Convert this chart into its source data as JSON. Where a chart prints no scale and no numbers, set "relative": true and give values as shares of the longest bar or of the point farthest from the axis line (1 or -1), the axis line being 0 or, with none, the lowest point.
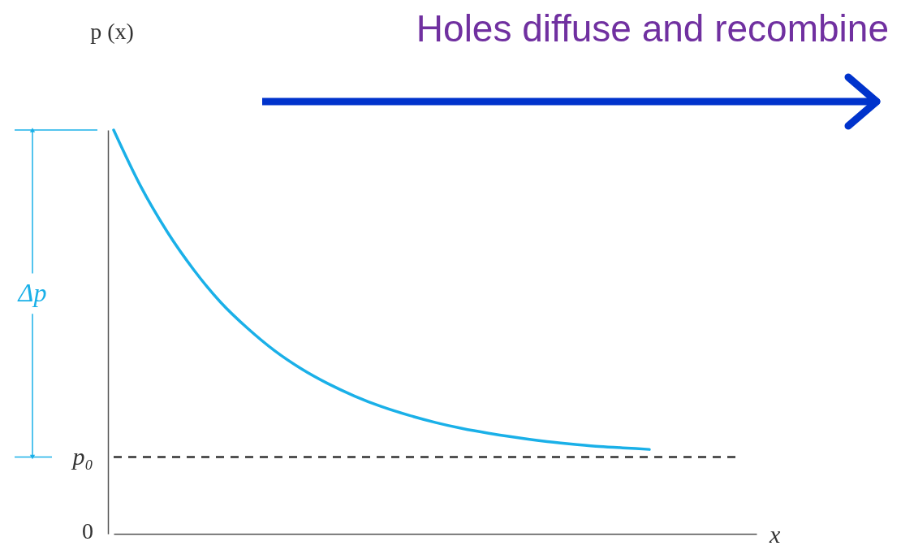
{
  "chart_data": {
    "type": "line",
    "title": "Holes diffuse and recombine",
    "ylabel": "p (x)",
    "xlabel": "x",
    "relative": true,
    "categories": [
      null,
      null,
      null,
      null,
      null,
      null,
      null,
      null,
      null,
      null,
      null,
      null,
      null,
      null,
      null,
      null,
      null,
      null,
      null,
      null,
      null,
      null,
      null,
      null,
      null
    ],
    "series": [
      {
        "color": "#1ab0e8",
        "values": [
          1.0,
          0.862,
          0.748,
          0.653,
          0.573,
          0.509,
          0.454,
          0.409,
          0.372,
          0.341,
          0.315,
          0.294,
          0.276,
          0.261,
          0.249,
          0.239,
          0.23,
          0.223,
          0.217,
          0.213,
          0.209,
          null,
          null,
          null,
          null
        ]
      }
    ],
    "ref_lines": [
      {
        "axis": "y",
        "value": 0.19,
        "label": "p₀",
        "color": "#333333",
        "line_style": "dashed"
      }
    ],
    "annotations": [
      "Δp",
      "0"
    ],
    "grid": false,
    "legend": false,
    "marker": "none",
    "line_style": "solid"
  }
}
